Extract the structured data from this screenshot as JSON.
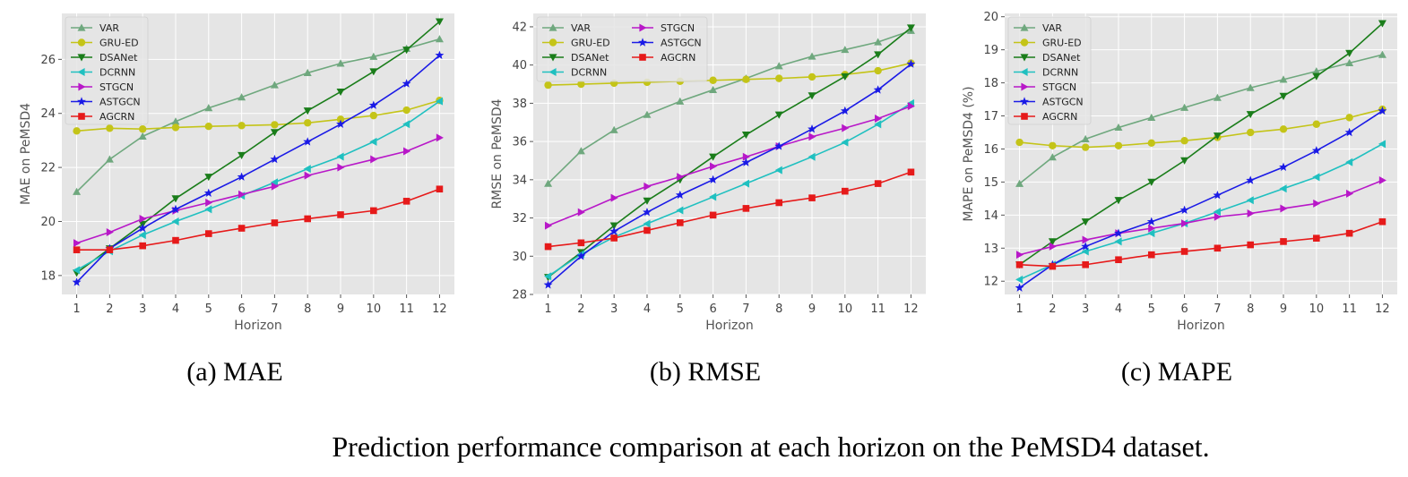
{
  "figure": {
    "caption": "Prediction performance comparison at each horizon on the PeMSD4 dataset."
  },
  "chart_data": [
    {
      "type": "line",
      "subcaption": "(a) MAE",
      "xlabel": "Horizon",
      "ylabel": "MAE on PeMSD4",
      "x": [
        1,
        2,
        3,
        4,
        5,
        6,
        7,
        8,
        9,
        10,
        11,
        12
      ],
      "xlim": [
        0.55,
        12.45
      ],
      "ylim": [
        17.3,
        27.7
      ],
      "yticks": [
        18,
        20,
        22,
        24,
        26
      ],
      "grid": true,
      "legend_position": "top-left",
      "legend_columns": 1,
      "series": [
        {
          "name": "VAR",
          "color": "#6fa87e",
          "marker": "triangle-up",
          "values": [
            21.1,
            22.3,
            23.15,
            23.7,
            24.2,
            24.6,
            25.05,
            25.5,
            25.85,
            26.1,
            26.4,
            26.75
          ]
        },
        {
          "name": "GRU-ED",
          "color": "#c4c418",
          "marker": "circle",
          "values": [
            23.35,
            23.45,
            23.42,
            23.48,
            23.52,
            23.55,
            23.58,
            23.65,
            23.78,
            23.92,
            24.12,
            24.48
          ]
        },
        {
          "name": "DSANet",
          "color": "#1a7d1a",
          "marker": "triangle-down",
          "values": [
            18.1,
            19.0,
            19.9,
            20.85,
            21.65,
            22.45,
            23.3,
            24.1,
            24.8,
            25.55,
            26.35,
            27.4
          ]
        },
        {
          "name": "DCRNN",
          "color": "#20c0c0",
          "marker": "triangle-left",
          "values": [
            18.2,
            18.9,
            19.5,
            20.0,
            20.45,
            20.95,
            21.45,
            21.95,
            22.4,
            22.95,
            23.6,
            24.45
          ]
        },
        {
          "name": "STGCN",
          "color": "#b818c8",
          "marker": "triangle-right",
          "values": [
            19.2,
            19.6,
            20.1,
            20.4,
            20.7,
            21.0,
            21.3,
            21.7,
            22.0,
            22.3,
            22.6,
            23.1
          ]
        },
        {
          "name": "ASTGCN",
          "color": "#1a1ae6",
          "marker": "star",
          "values": [
            17.75,
            19.0,
            19.75,
            20.45,
            21.05,
            21.65,
            22.3,
            22.95,
            23.6,
            24.3,
            25.1,
            26.15
          ]
        },
        {
          "name": "AGCRN",
          "color": "#e61a1a",
          "marker": "square",
          "values": [
            18.95,
            18.95,
            19.1,
            19.3,
            19.55,
            19.75,
            19.95,
            20.1,
            20.25,
            20.4,
            20.75,
            21.2
          ]
        }
      ]
    },
    {
      "type": "line",
      "subcaption": "(b) RMSE",
      "xlabel": "Horizon",
      "ylabel": "RMSE on PeMSD4",
      "x": [
        1,
        2,
        3,
        4,
        5,
        6,
        7,
        8,
        9,
        10,
        11,
        12
      ],
      "xlim": [
        0.55,
        12.45
      ],
      "ylim": [
        28.0,
        42.7
      ],
      "yticks": [
        28,
        30,
        32,
        34,
        36,
        38,
        40,
        42
      ],
      "grid": true,
      "legend_position": "top-left",
      "legend_columns": 2,
      "series": [
        {
          "name": "VAR",
          "color": "#6fa87e",
          "marker": "triangle-up",
          "values": [
            33.8,
            35.5,
            36.6,
            37.4,
            38.1,
            38.7,
            39.3,
            39.95,
            40.45,
            40.8,
            41.2,
            41.8
          ]
        },
        {
          "name": "GRU-ED",
          "color": "#c4c418",
          "marker": "circle",
          "values": [
            38.95,
            39.0,
            39.05,
            39.1,
            39.15,
            39.2,
            39.25,
            39.3,
            39.38,
            39.5,
            39.7,
            40.1
          ]
        },
        {
          "name": "DSANet",
          "color": "#1a7d1a",
          "marker": "triangle-down",
          "values": [
            28.9,
            30.2,
            31.6,
            32.9,
            34.0,
            35.2,
            36.35,
            37.4,
            38.4,
            39.4,
            40.55,
            41.95
          ]
        },
        {
          "name": "DCRNN",
          "color": "#20c0c0",
          "marker": "triangle-left",
          "values": [
            28.95,
            30.1,
            31.0,
            31.7,
            32.4,
            33.1,
            33.8,
            34.5,
            35.2,
            35.95,
            36.9,
            38.0
          ]
        },
        {
          "name": "STGCN",
          "color": "#b818c8",
          "marker": "triangle-right",
          "values": [
            31.6,
            32.3,
            33.05,
            33.65,
            34.15,
            34.7,
            35.2,
            35.75,
            36.25,
            36.7,
            37.2,
            37.85
          ]
        },
        {
          "name": "ASTGCN",
          "color": "#1a1ae6",
          "marker": "star",
          "values": [
            28.5,
            30.0,
            31.3,
            32.3,
            33.2,
            34.0,
            34.9,
            35.75,
            36.65,
            37.6,
            38.7,
            40.05
          ]
        },
        {
          "name": "AGCRN",
          "color": "#e61a1a",
          "marker": "square",
          "values": [
            30.5,
            30.7,
            30.95,
            31.35,
            31.75,
            32.15,
            32.5,
            32.8,
            33.05,
            33.4,
            33.8,
            34.4
          ]
        }
      ]
    },
    {
      "type": "line",
      "subcaption": "(c) MAPE",
      "xlabel": "Horizon",
      "ylabel": "MAPE on PeMSD4 (%)",
      "x": [
        1,
        2,
        3,
        4,
        5,
        6,
        7,
        8,
        9,
        10,
        11,
        12
      ],
      "xlim": [
        0.55,
        12.45
      ],
      "ylim": [
        11.6,
        20.1
      ],
      "yticks": [
        12,
        13,
        14,
        15,
        16,
        17,
        18,
        19,
        20
      ],
      "grid": true,
      "legend_position": "top-left",
      "legend_columns": 1,
      "series": [
        {
          "name": "VAR",
          "color": "#6fa87e",
          "marker": "triangle-up",
          "values": [
            14.95,
            15.75,
            16.3,
            16.65,
            16.95,
            17.25,
            17.55,
            17.85,
            18.1,
            18.35,
            18.6,
            18.85
          ]
        },
        {
          "name": "GRU-ED",
          "color": "#c4c418",
          "marker": "circle",
          "values": [
            16.2,
            16.1,
            16.05,
            16.1,
            16.18,
            16.25,
            16.35,
            16.5,
            16.6,
            16.75,
            16.95,
            17.2
          ]
        },
        {
          "name": "DSANet",
          "color": "#1a7d1a",
          "marker": "triangle-down",
          "values": [
            12.5,
            13.2,
            13.8,
            14.45,
            15.0,
            15.65,
            16.4,
            17.05,
            17.6,
            18.2,
            18.9,
            19.8
          ]
        },
        {
          "name": "DCRNN",
          "color": "#20c0c0",
          "marker": "triangle-left",
          "values": [
            12.05,
            12.5,
            12.9,
            13.2,
            13.45,
            13.75,
            14.1,
            14.45,
            14.8,
            15.15,
            15.6,
            16.15
          ]
        },
        {
          "name": "STGCN",
          "color": "#b818c8",
          "marker": "triangle-right",
          "values": [
            12.8,
            13.05,
            13.25,
            13.45,
            13.6,
            13.75,
            13.95,
            14.05,
            14.2,
            14.35,
            14.65,
            15.05
          ]
        },
        {
          "name": "ASTGCN",
          "color": "#1a1ae6",
          "marker": "star",
          "values": [
            11.8,
            12.5,
            13.05,
            13.45,
            13.8,
            14.15,
            14.6,
            15.05,
            15.45,
            15.95,
            16.5,
            17.15
          ]
        },
        {
          "name": "AGCRN",
          "color": "#e61a1a",
          "marker": "square",
          "values": [
            12.5,
            12.45,
            12.5,
            12.65,
            12.8,
            12.9,
            13.0,
            13.1,
            13.2,
            13.3,
            13.45,
            13.8
          ]
        }
      ]
    }
  ]
}
